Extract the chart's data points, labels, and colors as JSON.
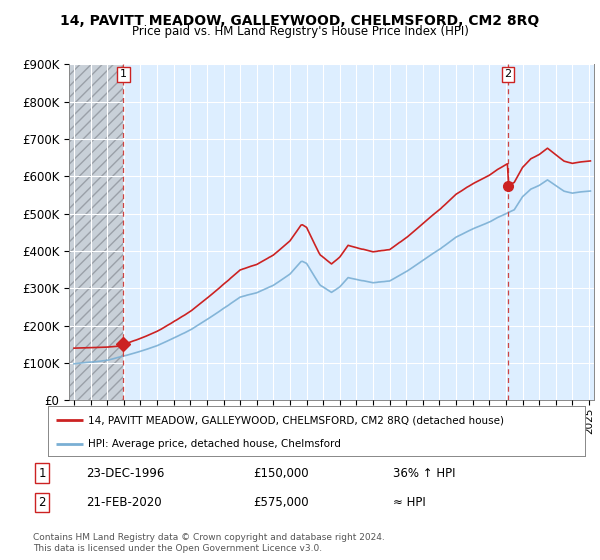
{
  "title": "14, PAVITT MEADOW, GALLEYWOOD, CHELMSFORD, CM2 8RQ",
  "subtitle": "Price paid vs. HM Land Registry's House Price Index (HPI)",
  "ylim": [
    0,
    900000
  ],
  "xlim_start": 1993.7,
  "xlim_end": 2025.3,
  "yticks": [
    0,
    100000,
    200000,
    300000,
    400000,
    500000,
    600000,
    700000,
    800000,
    900000
  ],
  "ytick_labels": [
    "£0",
    "£100K",
    "£200K",
    "£300K",
    "£400K",
    "£500K",
    "£600K",
    "£700K",
    "£800K",
    "£900K"
  ],
  "xticks": [
    1994,
    1995,
    1996,
    1997,
    1998,
    1999,
    2000,
    2001,
    2002,
    2003,
    2004,
    2005,
    2006,
    2007,
    2008,
    2009,
    2010,
    2011,
    2012,
    2013,
    2014,
    2015,
    2016,
    2017,
    2018,
    2019,
    2020,
    2021,
    2022,
    2023,
    2024,
    2025
  ],
  "hpi_color": "#7aafd4",
  "price_color": "#cc2222",
  "bg_plot_color": "#ddeeff",
  "hatch_color": "#c0c8d0",
  "transaction1_x": 1996.98,
  "transaction1_y": 150000,
  "transaction2_x": 2020.12,
  "transaction2_y": 575000,
  "legend_line1": "14, PAVITT MEADOW, GALLEYWOOD, CHELMSFORD, CM2 8RQ (detached house)",
  "legend_line2": "HPI: Average price, detached house, Chelmsford",
  "table_row1": [
    "1",
    "23-DEC-1996",
    "£150,000",
    "36% ↑ HPI"
  ],
  "table_row2": [
    "2",
    "21-FEB-2020",
    "£575,000",
    "≈ HPI"
  ],
  "footer": "Contains HM Land Registry data © Crown copyright and database right 2024.\nThis data is licensed under the Open Government Licence v3.0."
}
